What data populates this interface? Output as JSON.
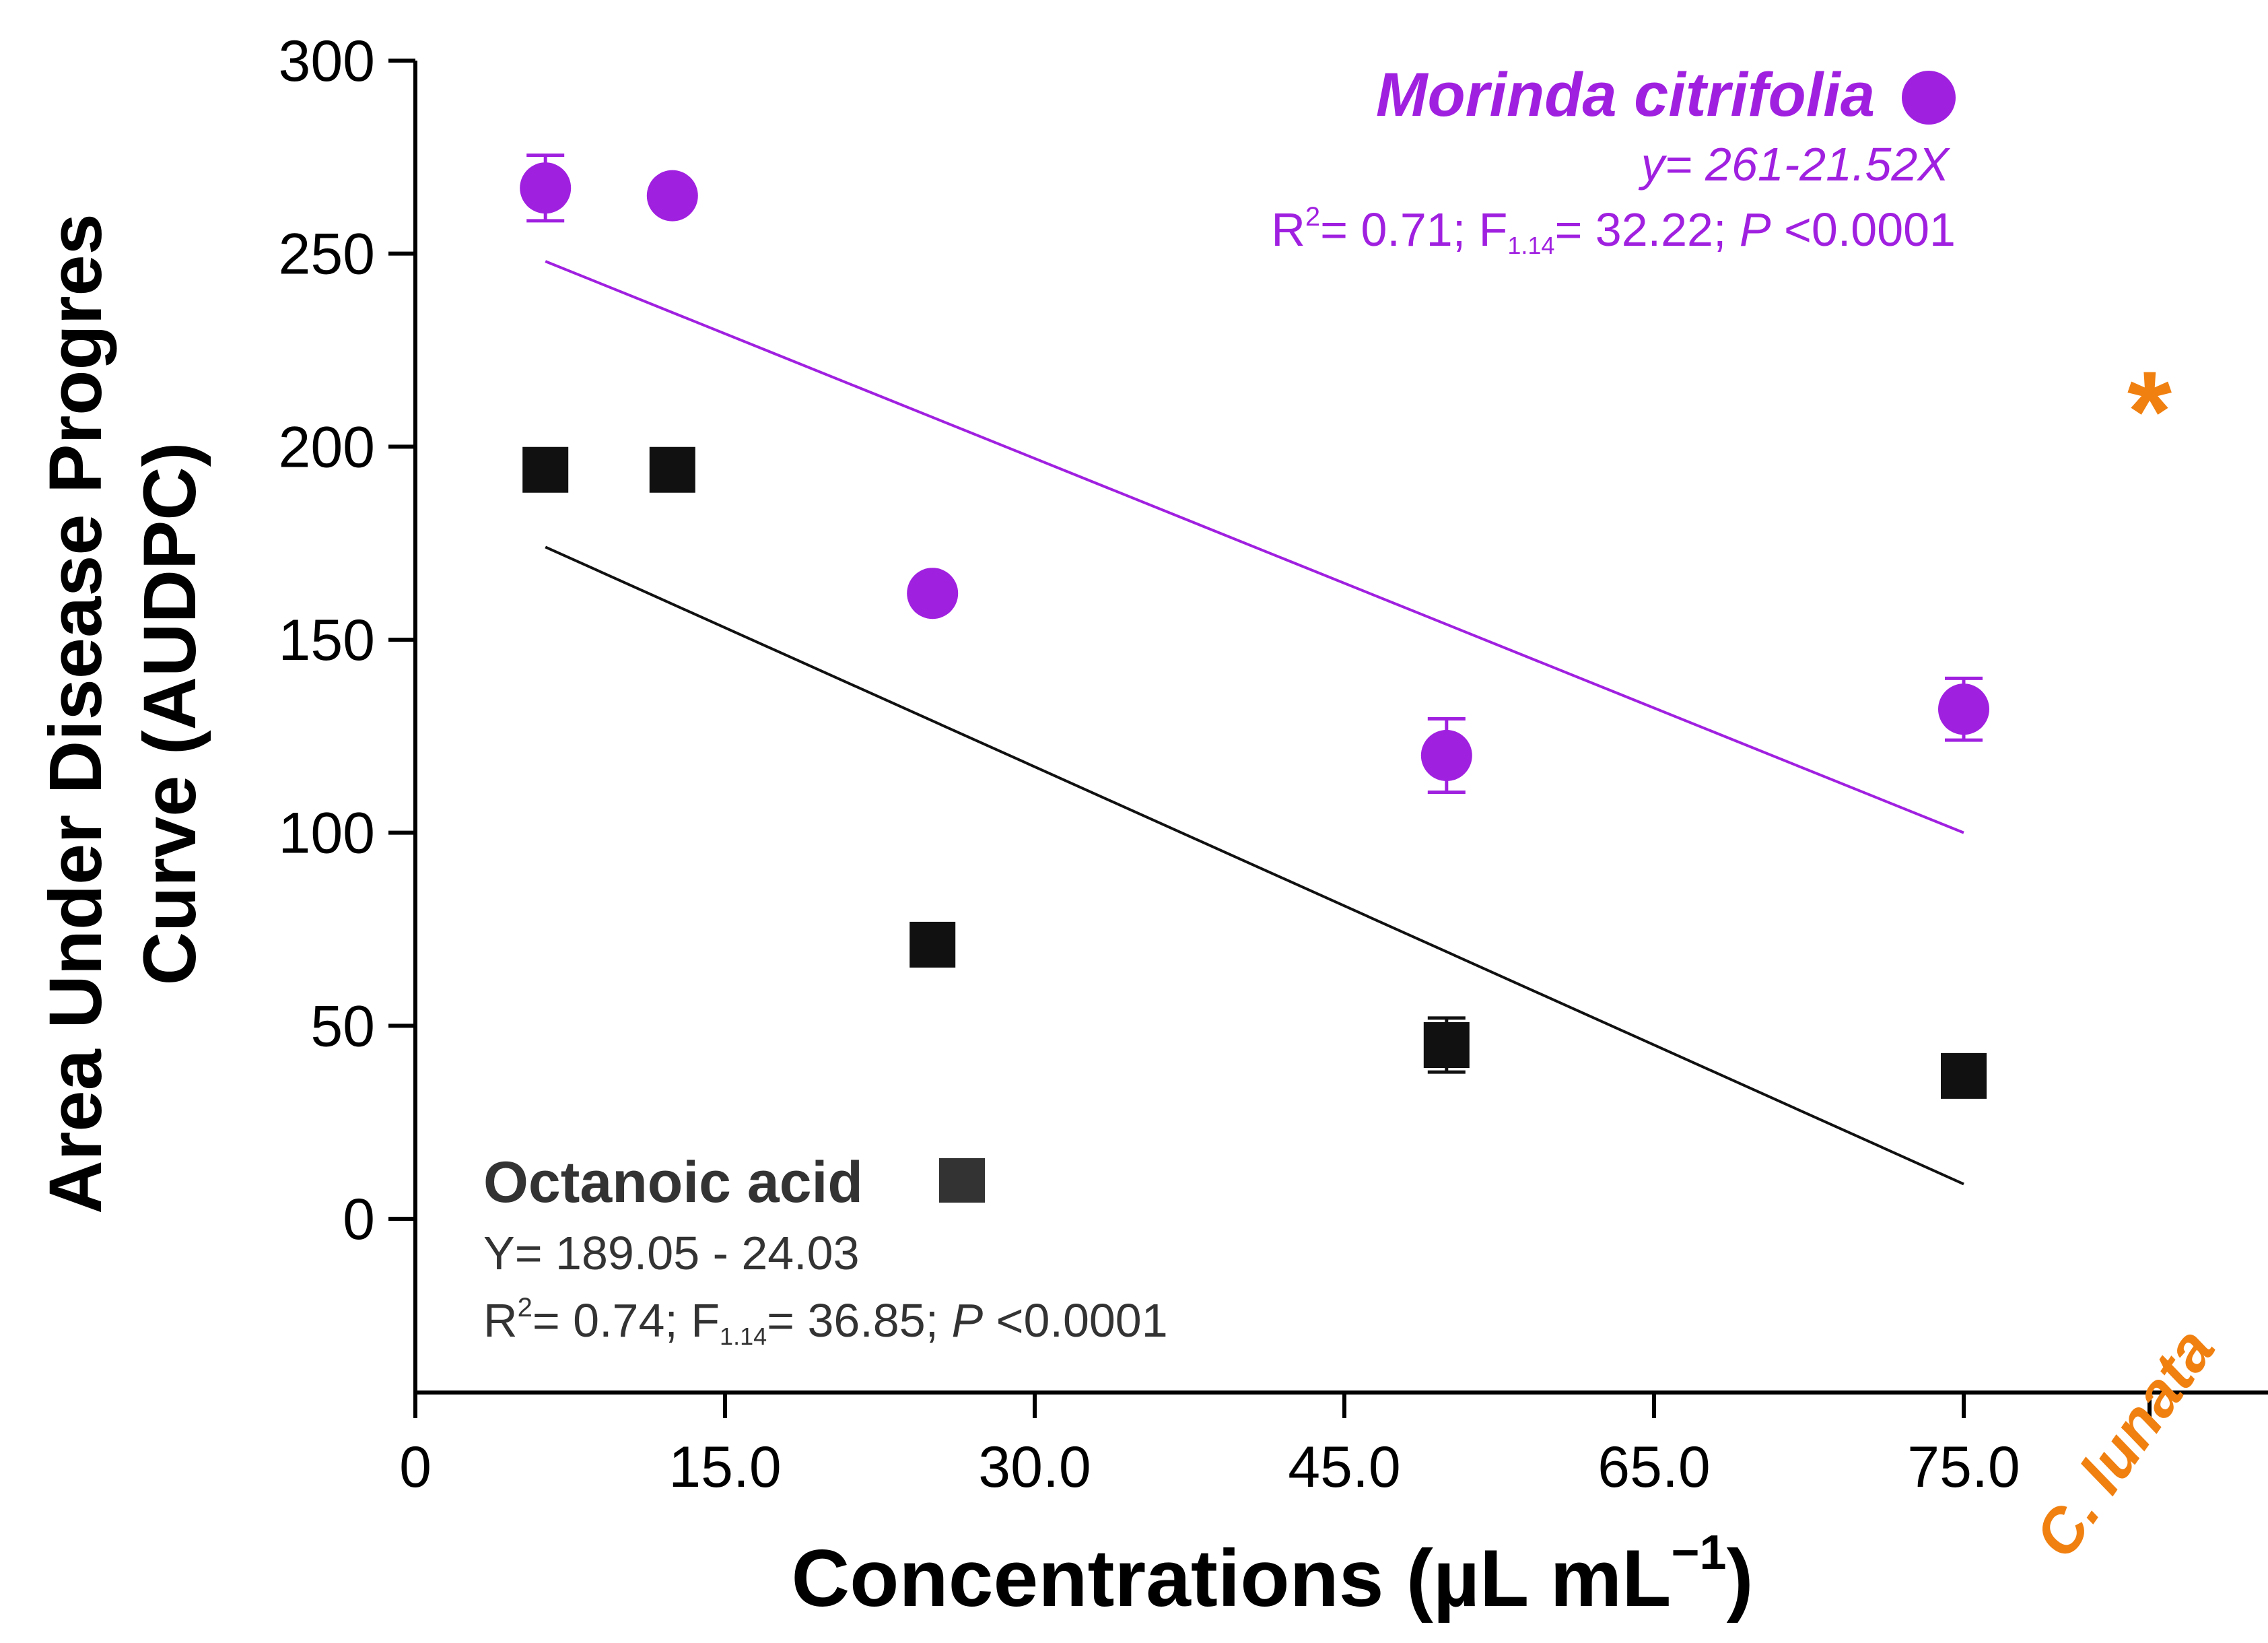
{
  "chart_data": {
    "type": "scatter",
    "xlabel": "Concentrations (µL mL",
    "xlabel_sup": "−1",
    "xlabel_close": ")",
    "ylabel_line1": "Area Under Disease Progres",
    "ylabel_line2": "Curve (AUDPC)",
    "ylim": [
      -45,
      300
    ],
    "y_ticks": [
      300,
      250,
      200,
      150,
      100,
      50,
      0
    ],
    "x_ticks": [
      {
        "label": "0",
        "pos": 0
      },
      {
        "label": "15.0",
        "pos": 1
      },
      {
        "label": "30.0",
        "pos": 2
      },
      {
        "label": "45.0",
        "pos": 3
      },
      {
        "label": "65.0",
        "pos": 4
      },
      {
        "label": "75.0",
        "pos": 5
      }
    ],
    "control_label": "C. lunata",
    "control": {
      "pos": 5.6,
      "y": 212,
      "marker": "*"
    },
    "series": [
      {
        "name": "Morinda citrifolia",
        "color": "#a020e0",
        "marker": "circle",
        "equation": "y= 261-21.52X",
        "stats": {
          "r2_label": "R",
          "r2_sup": "2",
          "r2_value": "= 0.71; F",
          "f_sub": "1.14",
          "f_value": "= 32.22; ",
          "p_label": "P",
          "p_value": " <0.0001"
        },
        "points": [
          {
            "pos": 0.42,
            "y": 267,
            "err": 8.5
          },
          {
            "pos": 0.83,
            "y": 265,
            "err": 0
          },
          {
            "pos": 1.67,
            "y": 162,
            "err": 0
          },
          {
            "pos": 3.33,
            "y": 120,
            "err": 9.5
          },
          {
            "pos": 5.0,
            "y": 132,
            "err": 8
          }
        ],
        "fit": {
          "from": {
            "pos": 0.42,
            "y": 248
          },
          "to": {
            "pos": 5.0,
            "y": 100
          }
        }
      },
      {
        "name": "Octanoic acid",
        "color": "#111111",
        "marker": "square",
        "equation": "Y= 189.05 - 24.03",
        "stats": {
          "r2_label": "R",
          "r2_sup": "2",
          "r2_value": "= 0.74; F",
          "f_sub": "1.14",
          "f_value": "= 36.85; ",
          "p_label": "P",
          "p_value": " <0.0001"
        },
        "points": [
          {
            "pos": 0.42,
            "y": 194,
            "err": 4
          },
          {
            "pos": 0.83,
            "y": 194,
            "err": 0
          },
          {
            "pos": 1.67,
            "y": 71,
            "err": 0
          },
          {
            "pos": 3.33,
            "y": 45,
            "err": 7
          },
          {
            "pos": 5.0,
            "y": 37,
            "err": 0
          }
        ],
        "fit": {
          "from": {
            "pos": 0.42,
            "y": 174
          },
          "to": {
            "pos": 5.0,
            "y": 9
          }
        }
      }
    ],
    "colors": {
      "control": "#f08010",
      "legend_square": "#333333"
    }
  }
}
